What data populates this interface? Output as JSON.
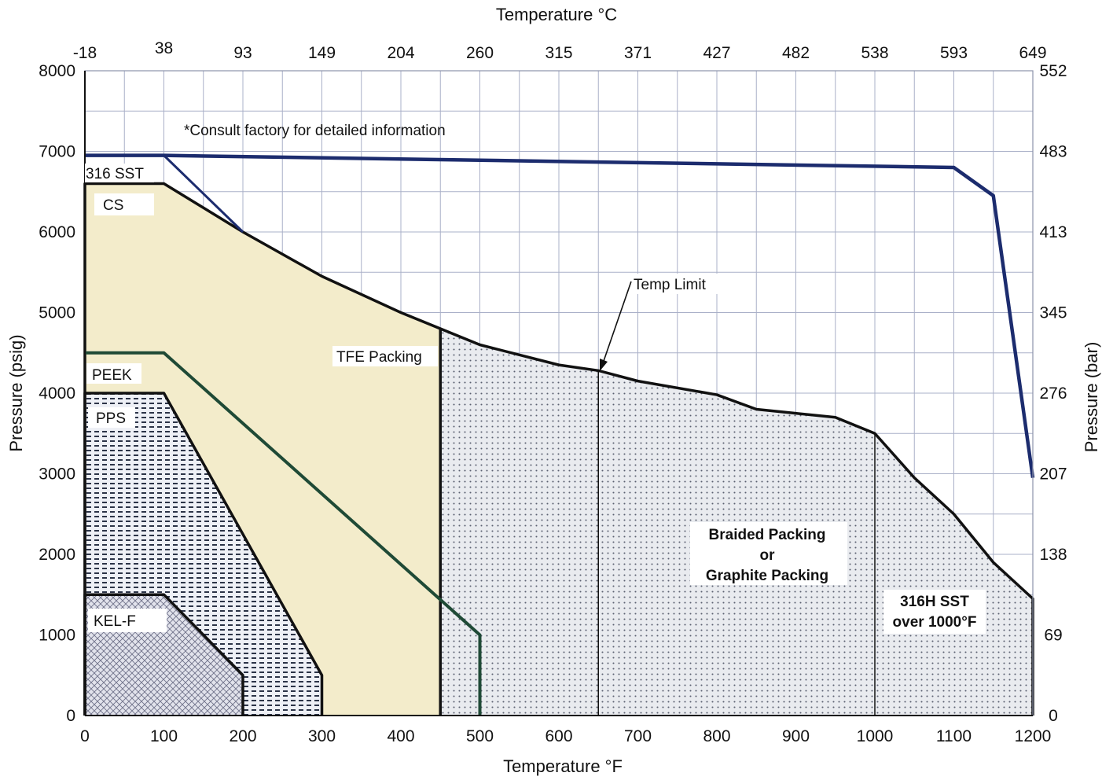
{
  "chart_data": {
    "type": "area",
    "x_axis": {
      "label": "Temperature °F",
      "range": [
        0,
        1200
      ],
      "ticks": [
        0,
        100,
        200,
        300,
        400,
        500,
        600,
        700,
        800,
        900,
        1000,
        1100,
        1200
      ]
    },
    "x2_axis": {
      "label": "Temperature °C",
      "ticks": [
        {
          "label": "-18",
          "f": 0
        },
        {
          "label": "38",
          "f": 100
        },
        {
          "label": "93",
          "f": 200
        },
        {
          "label": "149",
          "f": 300
        },
        {
          "label": "204",
          "f": 400
        },
        {
          "label": "260",
          "f": 500
        },
        {
          "label": "315",
          "f": 600
        },
        {
          "label": "371",
          "f": 700
        },
        {
          "label": "427",
          "f": 800
        },
        {
          "label": "482",
          "f": 900
        },
        {
          "label": "538",
          "f": 1000
        },
        {
          "label": "593",
          "f": 1100
        },
        {
          "label": "649",
          "f": 1200
        }
      ]
    },
    "y_axis": {
      "label": "Pressure (psig)",
      "range": [
        0,
        8000
      ],
      "ticks": [
        0,
        1000,
        2000,
        3000,
        4000,
        5000,
        6000,
        7000,
        8000
      ]
    },
    "y2_axis": {
      "label": "Pressure  (bar)",
      "ticks": [
        {
          "label": "0",
          "psi": 0
        },
        {
          "label": "69",
          "psi": 1000
        },
        {
          "label": "138",
          "psi": 2000
        },
        {
          "label": "207",
          "psi": 3000
        },
        {
          "label": "276",
          "psi": 4000
        },
        {
          "label": "345",
          "psi": 5000
        },
        {
          "label": "413",
          "psi": 6000
        },
        {
          "label": "483",
          "psi": 7000
        },
        {
          "label": "552",
          "psi": 8000
        }
      ]
    },
    "grid": true,
    "colors": {
      "tfe_fill": "#f3eccb",
      "peek_line": "#1f4a36",
      "sst_line": "#1c2c6e",
      "boundary": "#111111",
      "dot_fill": "#e9ebef",
      "grid": "#aab0c8"
    },
    "series": [
      {
        "name": "316 SST",
        "x": [
          0,
          100,
          1100,
          1150,
          1200
        ],
        "y": [
          6950,
          6950,
          6800,
          6450,
          2950
        ]
      },
      {
        "name": "CS",
        "x": [
          100,
          200
        ],
        "y": [
          6950,
          6000
        ]
      },
      {
        "name": "TFE Packing",
        "x": [
          0,
          0,
          100,
          200,
          300,
          400,
          450,
          450,
          0
        ],
        "y": [
          0,
          6600,
          6600,
          6000,
          5450,
          5000,
          4800,
          0,
          0
        ]
      },
      {
        "name": "PEEK",
        "x": [
          0,
          100,
          500,
          500
        ],
        "y": [
          4500,
          4500,
          1000,
          0
        ]
      },
      {
        "name": "PPS",
        "x": [
          0,
          0,
          100,
          300,
          300
        ],
        "y": [
          0,
          4000,
          4000,
          500,
          0
        ]
      },
      {
        "name": "KEL-F",
        "x": [
          0,
          0,
          100,
          200,
          200
        ],
        "y": [
          0,
          1500,
          1500,
          500,
          0
        ]
      },
      {
        "name": "Braided Packing or Graphite Packing",
        "x": [
          450,
          450,
          500,
          600,
          650,
          700,
          800,
          850,
          900,
          950,
          1000,
          1050,
          1100,
          1150,
          1200,
          1200
        ],
        "y": [
          0,
          4800,
          4600,
          4350,
          4280,
          4150,
          3980,
          3800,
          3750,
          3700,
          3500,
          2950,
          2500,
          1900,
          1450,
          0
        ]
      }
    ],
    "vertical_lines": [
      {
        "name": "Temp Limit",
        "x": 650
      },
      {
        "name": "316H SST over 1000°F",
        "x": 1000
      }
    ],
    "annotations": {
      "consult": "*Consult factory for detailed information",
      "sst": "316 SST",
      "cs": "CS",
      "tfe": "TFE Packing",
      "peek": "PEEK",
      "pps": "PPS",
      "kelf": "KEL-F",
      "temp_limit": "Temp Limit",
      "braided_1": "Braided Packing",
      "braided_2": "or",
      "braided_3": "Graphite Packing",
      "sst316h_1": "316H SST",
      "sst316h_2": "over 1000°F"
    }
  }
}
